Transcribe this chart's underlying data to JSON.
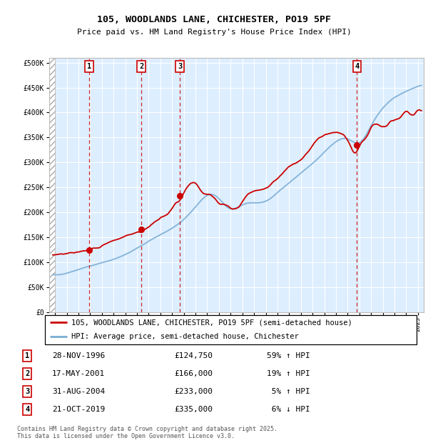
{
  "title": "105, WOODLANDS LANE, CHICHESTER, PO19 5PF",
  "subtitle": "Price paid vs. HM Land Registry's House Price Index (HPI)",
  "legend_line1": "105, WOODLANDS LANE, CHICHESTER, PO19 5PF (semi-detached house)",
  "legend_line2": "HPI: Average price, semi-detached house, Chichester",
  "red_color": "#cc0000",
  "blue_color": "#7aadd4",
  "bg_color": "#ddeeff",
  "sale_markers": [
    {
      "label": "1",
      "date_x": 1996.91,
      "price": 124750,
      "date_str": "28-NOV-1996",
      "price_str": "£124,750",
      "hpi_str": "59% ↑ HPI"
    },
    {
      "label": "2",
      "date_x": 2001.37,
      "price": 166000,
      "date_str": "17-MAY-2001",
      "price_str": "£166,000",
      "hpi_str": "19% ↑ HPI"
    },
    {
      "label": "3",
      "date_x": 2004.66,
      "price": 233000,
      "date_str": "31-AUG-2004",
      "price_str": "£233,000",
      "hpi_str": " 5% ↑ HPI"
    },
    {
      "label": "4",
      "date_x": 2019.8,
      "price": 335000,
      "date_str": "21-OCT-2019",
      "price_str": "£335,000",
      "hpi_str": " 6% ↓ HPI"
    }
  ],
  "ylim": [
    0,
    510000
  ],
  "xlim": [
    1993.5,
    2025.5
  ],
  "yticks": [
    0,
    50000,
    100000,
    150000,
    200000,
    250000,
    300000,
    350000,
    400000,
    450000,
    500000
  ],
  "ytick_labels": [
    "£0",
    "£50K",
    "£100K",
    "£150K",
    "£200K",
    "£250K",
    "£300K",
    "£350K",
    "£400K",
    "£450K",
    "£500K"
  ],
  "footer": "Contains HM Land Registry data © Crown copyright and database right 2025.\nThis data is licensed under the Open Government Licence v3.0."
}
